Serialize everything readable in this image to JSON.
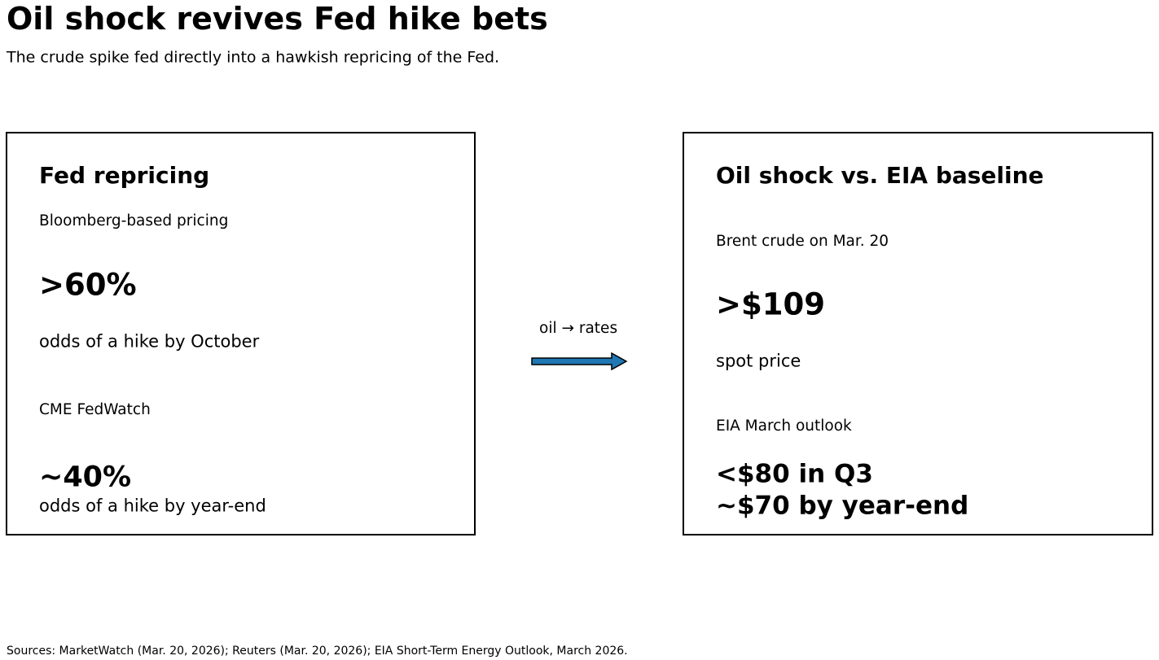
{
  "title": "Oil shock revives Fed hike bets",
  "subtitle": "The crude spike fed directly into a hawkish repricing of the Fed.",
  "left_panel": {
    "heading": "Fed repricing",
    "metric1_label": "Bloomberg-based pricing",
    "metric1_value": ">60%",
    "metric1_desc": "odds of a hike by October",
    "metric2_label": "CME FedWatch",
    "metric2_value": "~40%",
    "metric2_desc": "odds of a hike by year-end"
  },
  "connector": {
    "label": "oil → rates",
    "arrow_color": "#1f77b4",
    "icon": "arrow-right-icon"
  },
  "right_panel": {
    "heading": "Oil shock vs. EIA baseline",
    "metric1_label": "Brent crude on Mar. 20",
    "metric1_value": ">$109",
    "metric1_desc": "spot price",
    "metric2_label": "EIA March outlook",
    "metric2_value_line1": "<$80 in Q3",
    "metric2_value_line2": "~$70 by year-end"
  },
  "footer": "Sources: MarketWatch (Mar. 20, 2026); Reuters (Mar. 20, 2026); EIA Short-Term Energy Outlook, March 2026."
}
